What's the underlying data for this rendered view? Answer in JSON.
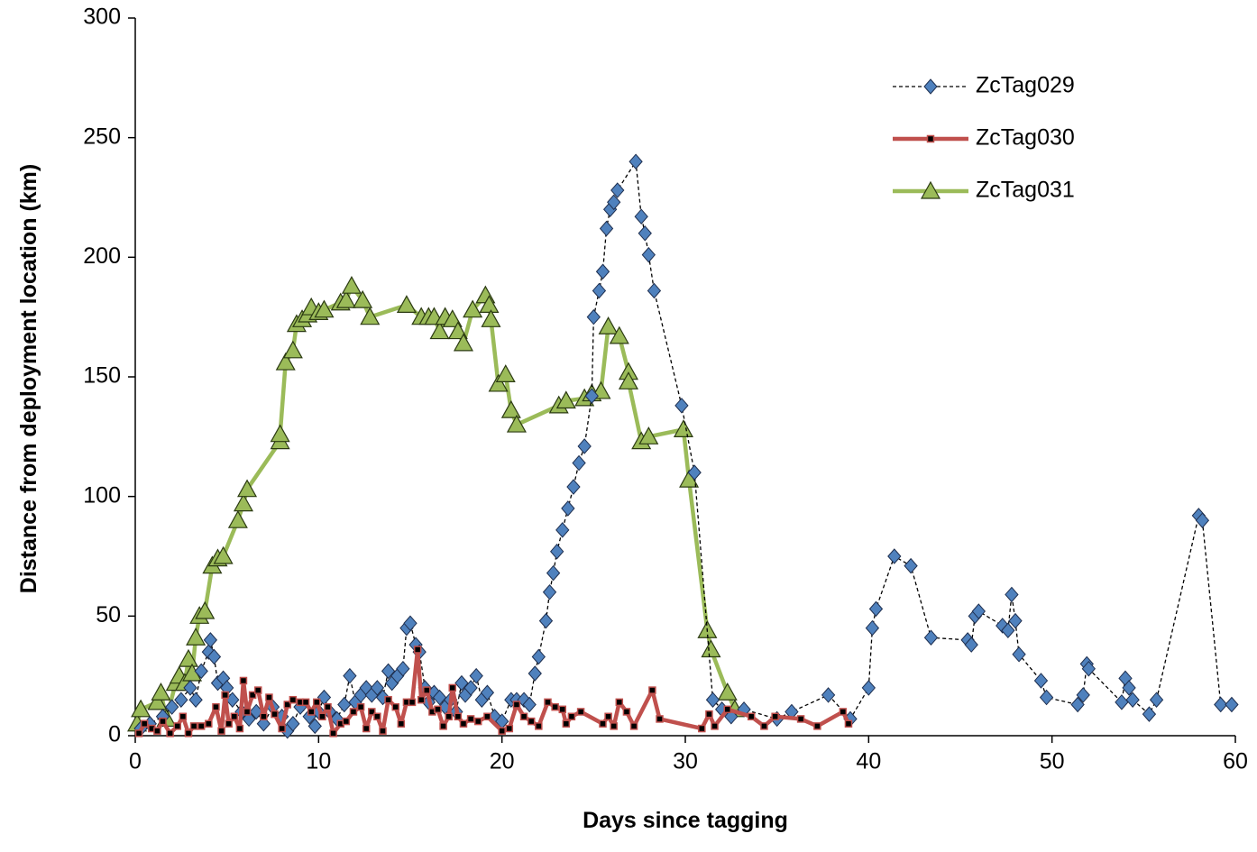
{
  "chart_data": {
    "type": "line",
    "x_label": "Days since tagging",
    "y_label": "Distance from deployment location (km)",
    "xlim": [
      0,
      60
    ],
    "xticks": [
      0,
      10,
      20,
      30,
      40,
      50,
      60
    ],
    "ylim": [
      0,
      300
    ],
    "yticks": [
      0,
      50,
      100,
      150,
      200,
      250,
      300
    ],
    "grid": false,
    "legend": "upper right",
    "series": [
      {
        "name": "ZcTag029",
        "color": "#4f81bd",
        "line_color": "#000000",
        "line_style": "dashed",
        "marker": "diamond",
        "x": [
          0.3,
          0.8,
          1.5,
          2,
          2.5,
          3,
          3.3,
          3.6,
          4,
          4.1,
          4.3,
          4.5,
          4.8,
          5,
          5.3,
          5.8,
          6.2,
          6.6,
          7,
          7.5,
          8,
          8.3,
          8.6,
          9,
          9.5,
          9.8,
          10,
          10.3,
          10.6,
          11,
          11.4,
          11.7,
          12,
          12.3,
          12.6,
          12.9,
          13.2,
          13.5,
          13.8,
          14,
          14.3,
          14.6,
          14.8,
          15,
          15.3,
          15.5,
          15.8,
          16,
          16.3,
          16.6,
          16.9,
          17.2,
          17.5,
          17.8,
          18,
          18.3,
          18.6,
          18.9,
          19.2,
          19.6,
          20,
          20.5,
          20.8,
          21.2,
          21.5,
          21.8,
          22,
          22.4,
          22.6,
          22.8,
          23,
          23.3,
          23.6,
          23.9,
          24.2,
          24.5,
          24.9,
          25,
          25.3,
          25.5,
          25.7,
          25.9,
          26.1,
          26.3,
          27.3,
          27.6,
          27.8,
          28,
          28.3,
          29.8,
          30.5,
          31.5,
          32,
          32.5,
          33.2,
          35,
          35.8,
          37.8,
          39,
          40,
          40.2,
          40.4,
          41.4,
          42.3,
          43.4,
          45.4,
          45.6,
          45.8,
          46,
          47.3,
          47.6,
          47.8,
          48,
          48.2,
          49.4,
          49.7,
          51.4,
          51.7,
          51.9,
          52,
          53.8,
          54,
          54.2,
          54.4,
          55.3,
          55.7,
          58,
          58.2,
          59.2,
          59.8
        ],
        "values": [
          3,
          5,
          8,
          12,
          15,
          20,
          15,
          27,
          35,
          40,
          33,
          22,
          24,
          20,
          15,
          10,
          7,
          10,
          5,
          12,
          8,
          2,
          5,
          12,
          8,
          4,
          10,
          16,
          10,
          7,
          13,
          25,
          14,
          17,
          20,
          17,
          20,
          16,
          27,
          22,
          25,
          28,
          45,
          47,
          38,
          35,
          20,
          14,
          18,
          16,
          12,
          15,
          10,
          22,
          17,
          20,
          25,
          15,
          18,
          8,
          6,
          15,
          15,
          15,
          13,
          26,
          33,
          48,
          60,
          68,
          77,
          86,
          95,
          104,
          114,
          121,
          142,
          175,
          186,
          194,
          212,
          220,
          223,
          228,
          240,
          217,
          210,
          201,
          186,
          138,
          110,
          15,
          11,
          8,
          11,
          7,
          10,
          17,
          7,
          20,
          45,
          53,
          75,
          71,
          41,
          40,
          38,
          50,
          52,
          46,
          44,
          59,
          48,
          34,
          23,
          16,
          13,
          17,
          30,
          28,
          14,
          24,
          20,
          15,
          9,
          15,
          92,
          90,
          13,
          13
        ]
      },
      {
        "name": "ZcTag030",
        "color": "#c0504d",
        "line_color": "#c0504d",
        "line_style": "solid",
        "marker": "square",
        "x": [
          0.2,
          0.5,
          0.9,
          1.2,
          1.5,
          1.9,
          2.3,
          2.6,
          2.9,
          3.2,
          3.6,
          4,
          4.4,
          4.7,
          4.9,
          5.1,
          5.4,
          5.7,
          5.9,
          6.1,
          6.4,
          6.7,
          7,
          7.3,
          7.6,
          8,
          8.3,
          8.6,
          9,
          9.3,
          9.6,
          9.9,
          10.2,
          10.5,
          10.8,
          11.2,
          11.5,
          11.9,
          12.3,
          12.6,
          12.9,
          13.2,
          13.5,
          13.8,
          14.2,
          14.5,
          14.8,
          15.1,
          15.4,
          15.6,
          15.9,
          16.2,
          16.5,
          16.8,
          17.1,
          17.3,
          17.6,
          17.9,
          18.3,
          18.7,
          19.2,
          20,
          20.4,
          20.8,
          21.2,
          21.6,
          22,
          22.5,
          22.9,
          23.3,
          23.5,
          23.8,
          24.3,
          25.5,
          25.8,
          26.1,
          26.4,
          26.8,
          27.2,
          28.2,
          28.6,
          30.9,
          31.3,
          31.6,
          32.3,
          33.6,
          34.3,
          34.9,
          36.3,
          37.2,
          38.6,
          38.9
        ],
        "values": [
          1,
          5,
          3,
          2,
          6,
          1,
          4,
          8,
          1,
          4,
          4,
          5,
          12,
          2,
          17,
          5,
          8,
          3,
          23,
          10,
          17,
          19,
          8,
          16,
          9,
          3,
          13,
          15,
          14,
          14,
          10,
          14,
          8,
          12,
          1,
          5,
          6,
          10,
          12,
          3,
          10,
          8,
          2,
          15,
          12,
          5,
          14,
          14,
          36,
          15,
          19,
          10,
          11,
          4,
          8,
          20,
          8,
          5,
          7,
          6,
          8,
          2,
          3,
          13,
          8,
          6,
          4,
          14,
          12,
          11,
          5,
          8,
          10,
          5,
          8,
          4,
          14,
          10,
          4,
          19,
          7,
          3,
          9,
          4,
          11,
          8,
          4,
          8,
          7,
          4,
          10,
          5
        ]
      },
      {
        "name": "ZcTag031",
        "color": "#9bbb59",
        "line_color": "#9bbb59",
        "line_style": "solid",
        "marker": "triangle",
        "x": [
          0.1,
          0.3,
          1.2,
          1.4,
          1.7,
          2.2,
          2.4,
          2.7,
          2.9,
          3.1,
          3.3,
          3.5,
          3.8,
          4.2,
          4.5,
          4.8,
          5.6,
          5.9,
          6.1,
          7.9,
          7.9,
          8.2,
          8.6,
          8.8,
          9.1,
          9.4,
          9.6,
          10,
          10.3,
          11.2,
          11.5,
          11.8,
          12.4,
          12.8,
          14.8,
          15.6,
          16,
          16.3,
          16.6,
          16.9,
          17.3,
          17.6,
          17.9,
          18.4,
          19.1,
          19.3,
          19.4,
          19.8,
          20.2,
          20.5,
          20.8,
          23.1,
          23.5,
          24.5,
          24.9,
          25.4,
          25.8,
          26.4,
          26.9,
          26.9,
          27.6,
          28,
          29.9,
          30.2,
          31.2,
          31.4,
          32.3,
          32.7
        ],
        "values": [
          5,
          11,
          14,
          18,
          7,
          22,
          25,
          22,
          32,
          26,
          41,
          50,
          52,
          71,
          74,
          75,
          90,
          97,
          103,
          123,
          126,
          156,
          161,
          172,
          174,
          176,
          179,
          177,
          178,
          181,
          182,
          188,
          182,
          175,
          180,
          175,
          175,
          175,
          169,
          175,
          174,
          169,
          164,
          178,
          184,
          180,
          174,
          147,
          151,
          136,
          130,
          138,
          140,
          141,
          143,
          144,
          171,
          167,
          152,
          148,
          123,
          125,
          128,
          107,
          44,
          36,
          18,
          11
        ]
      }
    ]
  }
}
